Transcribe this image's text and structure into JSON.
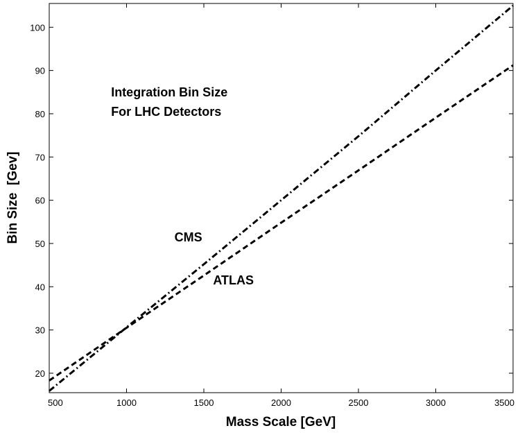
{
  "chart_data": {
    "type": "line",
    "title": "",
    "xlabel": "Mass Scale [GeV]",
    "ylabel": "Bin Size  [Gev]",
    "xlim": [
      500,
      3500
    ],
    "ylim": [
      15.5,
      105.5
    ],
    "x_ticks": [
      500,
      1000,
      1500,
      2000,
      2500,
      3000,
      3500
    ],
    "y_ticks": [
      20,
      30,
      40,
      50,
      60,
      70,
      80,
      90,
      100
    ],
    "grid": false,
    "legend": "none",
    "series": [
      {
        "name": "CMS",
        "style": "dash-dot",
        "color": "#000000",
        "x": [
          500,
          1000,
          1500,
          2000,
          2500,
          3000,
          3500
        ],
        "y": [
          15.9,
          30.6,
          45.2,
          60.0,
          74.8,
          90.0,
          105.0
        ]
      },
      {
        "name": "ATLAS",
        "style": "dashed",
        "color": "#000000",
        "x": [
          500,
          1000,
          1500,
          2000,
          2500,
          3000,
          3500
        ],
        "y": [
          18.3,
          30.5,
          42.6,
          54.8,
          66.9,
          79.1,
          91.2
        ]
      }
    ],
    "annotations": [
      {
        "text": "Integration Bin Size",
        "x": 900,
        "y": 84
      },
      {
        "text": "For LHC Detectors",
        "x": 900,
        "y": 79.5
      },
      {
        "text": "CMS",
        "x": 1310,
        "y": 50.5
      },
      {
        "text": "ATLAS",
        "x": 1560,
        "y": 40.5
      }
    ]
  }
}
